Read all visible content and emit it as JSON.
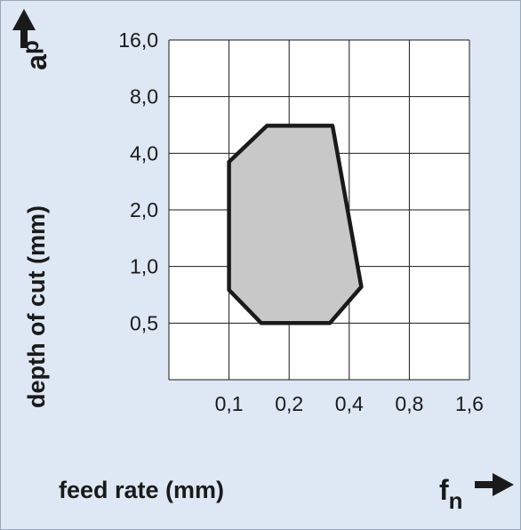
{
  "chart_data": {
    "type": "area",
    "x_scale": "categorical-log",
    "y_scale": "categorical-log",
    "x_ticks": [
      "0,1",
      "0,2",
      "0,4",
      "0,8",
      "1,6"
    ],
    "x_tick_values": [
      0.1,
      0.2,
      0.4,
      0.8,
      1.6
    ],
    "y_ticks": [
      "0,5",
      "1,0",
      "2,0",
      "4,0",
      "8,0",
      "16,0"
    ],
    "y_tick_values": [
      0.5,
      1.0,
      2.0,
      4.0,
      8.0,
      16.0
    ],
    "xlabel": "feed rate (mm)",
    "ylabel": "depth of cut (mm)",
    "x_symbol": "f",
    "x_symbol_sub": "n",
    "y_symbol": "a",
    "y_symbol_sub": "p",
    "grid": true,
    "series": [
      {
        "points": [
          {
            "x": 0.1,
            "y": 3.6
          },
          {
            "x": 0.155,
            "y": 5.6
          },
          {
            "x": 0.33,
            "y": 5.6
          },
          {
            "x": 0.46,
            "y": 0.78
          },
          {
            "x": 0.32,
            "y": 0.5
          },
          {
            "x": 0.145,
            "y": 0.5
          },
          {
            "x": 0.1,
            "y": 0.75
          }
        ]
      }
    ],
    "colors": {
      "background": "#dde8f4",
      "plot_area": "#ffffff",
      "region_fill": "#c8c8c8",
      "region_stroke": "#1a1a1a",
      "grid": "#1a1a1a"
    }
  }
}
